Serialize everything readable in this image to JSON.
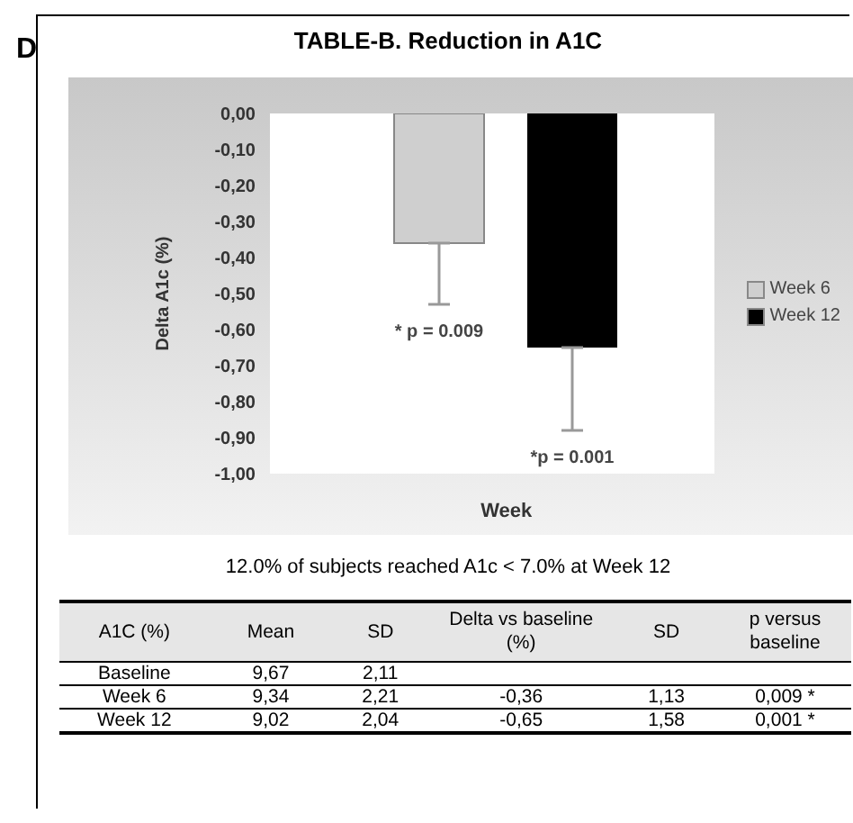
{
  "chart_data": [
    {
      "type": "bar",
      "title": "TABLE-B. Reduction in A1C",
      "xlabel": "Week",
      "ylabel": "Delta A1c (%)",
      "categories": [
        null
      ],
      "series": [
        {
          "name": "Week 6",
          "color": "#cfcfcf",
          "values": [
            -0.36
          ],
          "errors": [
            [
              -0.53,
              -0.36
            ]
          ]
        },
        {
          "name": "Week 12",
          "color": "#000000",
          "values": [
            -0.65
          ],
          "errors": [
            [
              -0.88,
              -0.65
            ]
          ]
        }
      ],
      "ylim": [
        -1,
        0
      ],
      "yticks": [
        {
          "value": 0,
          "label": "0,00"
        },
        {
          "value": -0.1,
          "label": "-0,10"
        },
        {
          "value": -0.2,
          "label": "-0,20"
        },
        {
          "value": -0.3,
          "label": "-0,30"
        },
        {
          "value": -0.4,
          "label": "-0,40"
        },
        {
          "value": -0.5,
          "label": "-0,50"
        },
        {
          "value": -0.6,
          "label": "-0,60"
        },
        {
          "value": -0.7,
          "label": "-0,70"
        },
        {
          "value": -0.8,
          "label": "-0,80"
        },
        {
          "value": -0.9,
          "label": "-0,90"
        },
        {
          "value": -1,
          "label": "-1,00"
        }
      ],
      "legend": "right",
      "annotations": [
        "* p = 0.009",
        "*p = 0.001",
        "D",
        "12.0% of subjects reached A1c < 7.0% at Week 12"
      ]
    },
    {
      "type": "other",
      "annotations": [
        "A1C (%)",
        "Mean",
        "SD",
        "Delta vs baseline (%)",
        "SD",
        "p versus baseline",
        "Baseline",
        "9,67",
        "2,11",
        null,
        null,
        null,
        "Week 6",
        "9,34",
        "2,21",
        "-0,36",
        "1,13",
        "0,009 *",
        "Week 12",
        "9,02",
        "2,04",
        "-0,65",
        "1,58",
        "0,001 *"
      ]
    }
  ]
}
